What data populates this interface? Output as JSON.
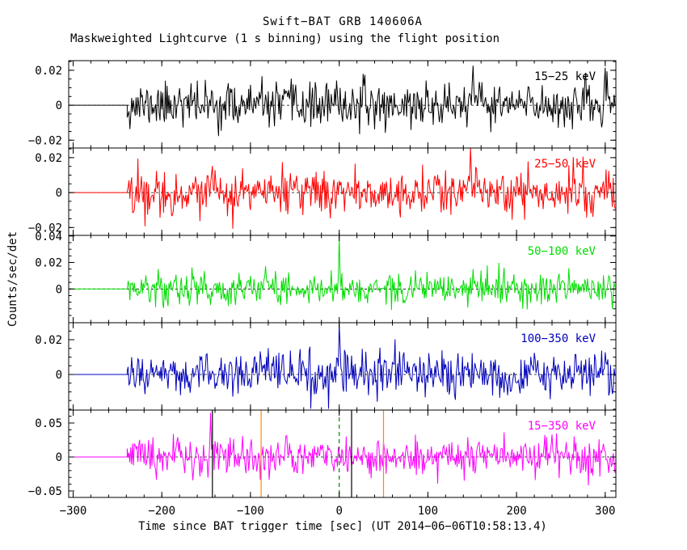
{
  "chart_data": {
    "type": "line",
    "title": "Swift−BAT GRB 140606A",
    "subtitle": "Maskweighted Lightcurve (1 s binning) using the flight position",
    "xlabel": "Time since BAT trigger time [sec] (UT 2014−06−06T10:58:13.4)",
    "ylabel": "Counts/sec/det",
    "x_axis": {
      "min": -305,
      "max": 312,
      "major_ticks": [
        {
          "v": -300,
          "label": "−300"
        },
        {
          "v": -200,
          "label": "−200"
        },
        {
          "v": -100,
          "label": "−100"
        },
        {
          "v": 0,
          "label": "0"
        },
        {
          "v": 100,
          "label": "100"
        },
        {
          "v": 200,
          "label": "200"
        },
        {
          "v": 300,
          "label": "300"
        }
      ],
      "minor_step": 20
    },
    "binning_sec": 1,
    "data_start_sec": -239,
    "data_end_sec": 311,
    "pre_trigger_level": 0,
    "zero_line": {
      "color": "#000000",
      "dash": "3,3"
    },
    "panels": [
      {
        "label": "15−25 keV",
        "color": "#000000",
        "ylim": [
          -0.0245,
          0.0255
        ],
        "yticks": [
          {
            "v": 0.02,
            "label": "0.02"
          },
          {
            "v": 0,
            "label": "0"
          },
          {
            "v": -0.02,
            "label": "−0.02"
          }
        ],
        "y_minor_step": 0.005,
        "noise_sigma": 0.0062,
        "seed": 11,
        "spikes": [
          {
            "t": -180,
            "amp": 0.013
          },
          {
            "t": 150,
            "amp": 0.018
          }
        ]
      },
      {
        "label": "25−50 keV",
        "color": "#ff0000",
        "ylim": [
          -0.0245,
          0.0255
        ],
        "yticks": [
          {
            "v": 0.02,
            "label": "0.02"
          },
          {
            "v": 0,
            "label": "0"
          },
          {
            "v": -0.02,
            "label": "−0.02"
          }
        ],
        "y_minor_step": 0.005,
        "noise_sigma": 0.0062,
        "seed": 22,
        "spikes": [
          {
            "t": 148,
            "amp": 0.02
          }
        ]
      },
      {
        "label": "50−100 keV",
        "color": "#00dd00",
        "ylim": [
          -0.0255,
          0.0405
        ],
        "yticks": [
          {
            "v": 0.04,
            "label": "0.04"
          },
          {
            "v": 0.02,
            "label": "0.02"
          },
          {
            "v": 0,
            "label": "0"
          }
        ],
        "y_minor_step": 0.005,
        "noise_sigma": 0.0062,
        "seed": 33,
        "spikes": [
          {
            "t": 0,
            "amp": 0.033
          }
        ]
      },
      {
        "label": "100−350 keV",
        "color": "#0000bb",
        "ylim": [
          -0.0205,
          0.0298
        ],
        "yticks": [
          {
            "v": 0.02,
            "label": "0.02"
          },
          {
            "v": 0,
            "label": "0"
          }
        ],
        "y_minor_step": 0.005,
        "noise_sigma": 0.0062,
        "seed": 44,
        "spikes": [
          {
            "t": 0,
            "amp": 0.022
          }
        ]
      },
      {
        "label": "15−350 keV",
        "color": "#ff00ff",
        "ylim": [
          -0.0595,
          0.069
        ],
        "yticks": [
          {
            "v": 0.05,
            "label": "0.05"
          },
          {
            "v": 0,
            "label": "0"
          },
          {
            "v": -0.05,
            "label": "−0.05"
          }
        ],
        "y_minor_step": 0.01,
        "noise_sigma": 0.014,
        "seed": 55,
        "spikes": [
          {
            "t": -145,
            "amp": 0.05
          },
          {
            "t": 0,
            "amp": 0.025
          }
        ]
      }
    ],
    "event_markers": [
      {
        "t": -143,
        "color": "#000000",
        "dashed": false
      },
      {
        "t": -88,
        "color": "#ff8800",
        "dashed": false
      },
      {
        "t": 0,
        "color": "#008800",
        "dashed": true
      },
      {
        "t": 14,
        "color": "#000000",
        "dashed": false
      },
      {
        "t": 50,
        "color": "#ff8800",
        "dashed": false
      }
    ]
  }
}
